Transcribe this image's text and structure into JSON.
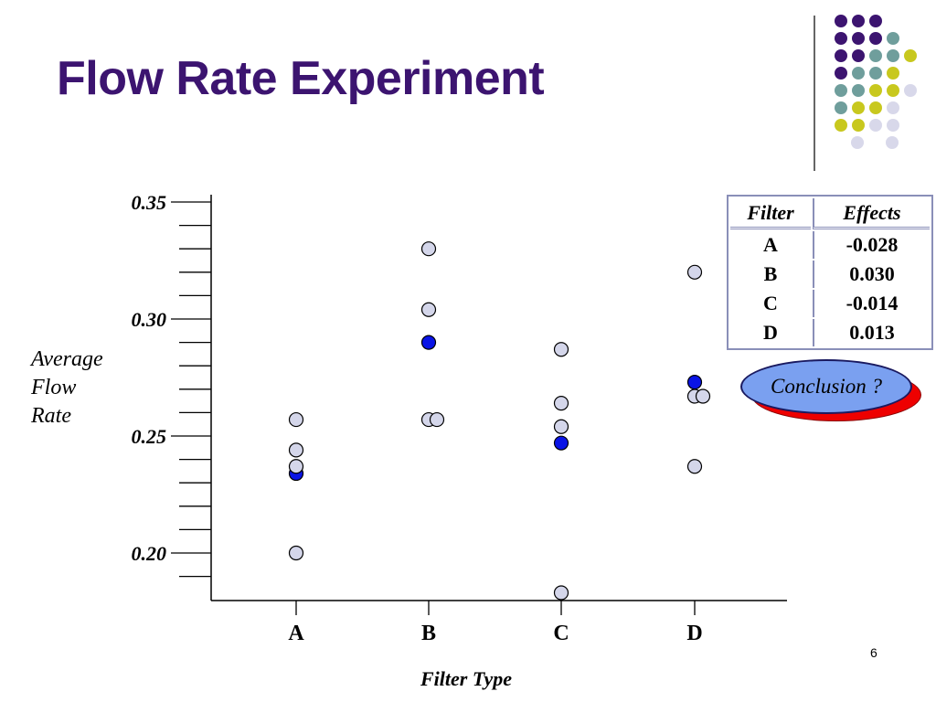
{
  "slide": {
    "title": "Flow Rate Experiment",
    "page_number": "6"
  },
  "chart_data": {
    "type": "scatter",
    "categories": [
      "A",
      "B",
      "C",
      "D"
    ],
    "xlabel": "Filter Type",
    "ylabel_lines": [
      "Average",
      "Flow",
      "Rate"
    ],
    "y_tick_labels": [
      "0.35",
      "0.30",
      "0.25",
      "0.20"
    ],
    "y_ticks": [
      0.35,
      0.3,
      0.25,
      0.2
    ],
    "ylim": [
      0.18,
      0.355
    ],
    "minor_tick_step": 0.01,
    "grid": false,
    "series": [
      {
        "role": "observations",
        "color": "#d4d6ea",
        "points": [
          {
            "x": "A",
            "y": 0.257
          },
          {
            "x": "A",
            "y": 0.244
          },
          {
            "x": "A",
            "y": 0.237
          },
          {
            "x": "A",
            "y": 0.2
          },
          {
            "x": "B",
            "y": 0.33
          },
          {
            "x": "B",
            "y": 0.304
          },
          {
            "x": "B",
            "y": 0.257
          },
          {
            "x": "B",
            "y": 0.257
          },
          {
            "x": "C",
            "y": 0.287
          },
          {
            "x": "C",
            "y": 0.264
          },
          {
            "x": "C",
            "y": 0.254
          },
          {
            "x": "C",
            "y": 0.183
          },
          {
            "x": "D",
            "y": 0.32
          },
          {
            "x": "D",
            "y": 0.267
          },
          {
            "x": "D",
            "y": 0.267
          },
          {
            "x": "D",
            "y": 0.237
          }
        ]
      },
      {
        "role": "means",
        "color": "#0a14e6",
        "points": [
          {
            "x": "A",
            "y": 0.234
          },
          {
            "x": "B",
            "y": 0.29
          },
          {
            "x": "C",
            "y": 0.247
          },
          {
            "x": "D",
            "y": 0.273
          }
        ]
      }
    ]
  },
  "effects_table": {
    "headers": [
      "Filter",
      "Effects"
    ],
    "rows": [
      {
        "filter": "A",
        "effect": "-0.028"
      },
      {
        "filter": "B",
        "effect": "0.030"
      },
      {
        "filter": "C",
        "effect": "-0.014"
      },
      {
        "filter": "D",
        "effect": "0.013"
      }
    ]
  },
  "conclusion": {
    "label": "Conclusion ?",
    "fill_color": "#7aa0f0",
    "shadow_color": "#ee0000"
  },
  "decor_colors": {
    "purple": "#3c1470",
    "teal": "#6f9e9c",
    "yellow": "#c8c81e",
    "lavender": "#d8d8ea"
  }
}
